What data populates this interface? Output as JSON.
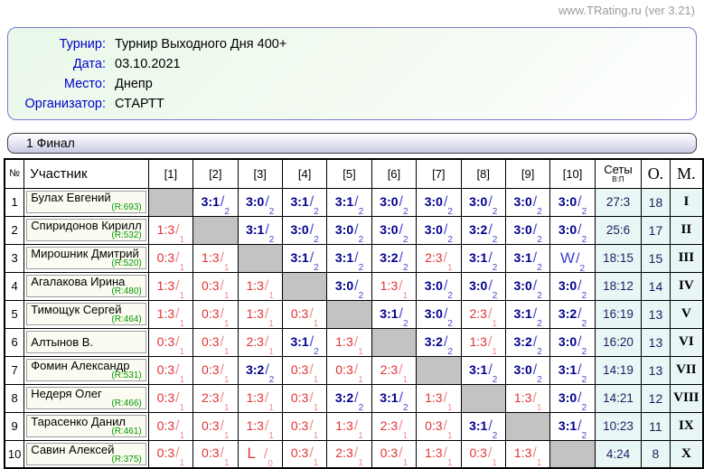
{
  "site": {
    "watermark": "www.TRating.ru (ver 3.21)"
  },
  "info": {
    "fields": [
      {
        "label": "Турнир:",
        "value": "Турнир Выходного Дня 400+"
      },
      {
        "label": "Дата:",
        "value": "03.10.2021"
      },
      {
        "label": "Место:",
        "value": "Днепр"
      },
      {
        "label": "Организатор:",
        "value": "СТАРТТ"
      }
    ]
  },
  "section": {
    "title": "1 Финал"
  },
  "colors": {
    "label_blue": "#0000cc",
    "win_navy": "#00008b",
    "win_slash_blue": "#4848d2",
    "loss_red": "#e23333",
    "loss_slash_pink": "#f08e8e",
    "rating_green": "#009900",
    "diagonal_gray": "#c3c3c3",
    "summary_bg": "#e9f6f6",
    "box_border_blue": "#7b7bd0",
    "watermark_gray": "#9a9a9a"
  },
  "table": {
    "headers": {
      "num": "№",
      "participant": "Участник",
      "rounds": [
        "[1]",
        "[2]",
        "[3]",
        "[4]",
        "[5]",
        "[6]",
        "[7]",
        "[8]",
        "[9]",
        "[10]"
      ],
      "sets": "Сеты",
      "sets_sub": "В:П",
      "points": "О.",
      "place": "М."
    },
    "rows": [
      {
        "num": "1",
        "name": "Булах Евгений",
        "rating": "(R:693)",
        "cells": [
          "x",
          "w|3:1|2",
          "w|3:0|2",
          "w|3:1|2",
          "w|3:1|2",
          "w|3:0|2",
          "w|3:0|2",
          "w|3:0|2",
          "w|3:0|2",
          "w|3:0|2"
        ],
        "sets": "27:3",
        "points": "18",
        "place": "I"
      },
      {
        "num": "2",
        "name": "Спиридонов Кирилл",
        "rating": "(R:532)",
        "cells": [
          "l|1:3|1",
          "x",
          "w|3:1|2",
          "w|3:0|2",
          "w|3:0|2",
          "w|3:0|2",
          "w|3:0|2",
          "w|3:2|2",
          "w|3:0|2",
          "w|3:0|2"
        ],
        "sets": "25:6",
        "points": "17",
        "place": "II"
      },
      {
        "num": "3",
        "name": "Мирошник Дмитрий",
        "rating": "(R:520)",
        "cells": [
          "l|0:3|1",
          "l|1:3|1",
          "x",
          "w|3:1|2",
          "w|3:1|2",
          "w|3:2|2",
          "l|2:3|1",
          "w|3:1|2",
          "w|3:1|2",
          "ww|W|2"
        ],
        "sets": "18:15",
        "points": "15",
        "place": "III"
      },
      {
        "num": "4",
        "name": "Агалакова Ирина",
        "rating": "(R:480)",
        "cells": [
          "l|1:3|1",
          "l|0:3|1",
          "l|1:3|1",
          "x",
          "w|3:0|2",
          "l|1:3|1",
          "w|3:0|2",
          "w|3:0|2",
          "w|3:0|2",
          "w|3:0|2"
        ],
        "sets": "18:12",
        "points": "14",
        "place": "IV"
      },
      {
        "num": "5",
        "name": "Тимощук Сергей",
        "rating": "(R:464)",
        "cells": [
          "l|1:3|1",
          "l|0:3|1",
          "l|1:3|1",
          "l|0:3|1",
          "x",
          "w|3:1|2",
          "w|3:0|2",
          "l|2:3|1",
          "w|3:1|2",
          "w|3:2|2"
        ],
        "sets": "16:19",
        "points": "13",
        "place": "V"
      },
      {
        "num": "6",
        "name": "Алтынов В.",
        "rating": "",
        "cells": [
          "l|0:3|1",
          "l|0:3|1",
          "l|2:3|1",
          "w|3:1|2",
          "l|1:3|1",
          "x",
          "w|3:2|2",
          "l|1:3|1",
          "w|3:2|2",
          "w|3:0|2"
        ],
        "sets": "16:20",
        "points": "13",
        "place": "VI"
      },
      {
        "num": "7",
        "name": "Фомин Александр",
        "rating": "(R:531)",
        "cells": [
          "l|0:3|1",
          "l|0:3|1",
          "w|3:2|2",
          "l|0:3|1",
          "l|0:3|1",
          "l|2:3|1",
          "x",
          "w|3:1|2",
          "w|3:0|2",
          "w|3:1|2"
        ],
        "sets": "14:19",
        "points": "13",
        "place": "VII"
      },
      {
        "num": "8",
        "name": "Недеря Олег",
        "rating": "(R:466)",
        "cells": [
          "l|0:3|1",
          "l|2:3|1",
          "l|1:3|1",
          "l|0:3|1",
          "w|3:2|2",
          "w|3:1|2",
          "l|1:3|1",
          "x",
          "l|1:3|1",
          "w|3:0|2"
        ],
        "sets": "14:21",
        "points": "12",
        "place": "VIII"
      },
      {
        "num": "9",
        "name": "Тарасенко Данил",
        "rating": "(R:461)",
        "cells": [
          "l|0:3|1",
          "l|0:3|1",
          "l|1:3|1",
          "l|0:3|1",
          "l|1:3|1",
          "l|2:3|1",
          "l|0:3|1",
          "w|3:1|2",
          "x",
          "w|3:1|2"
        ],
        "sets": "10:23",
        "points": "11",
        "place": "IX"
      },
      {
        "num": "10",
        "name": "Савин Алексей",
        "rating": "(R:375)",
        "cells": [
          "l|0:3|1",
          "l|0:3|1",
          "wl|L|0",
          "l|0:3|1",
          "l|2:3|1",
          "l|0:3|1",
          "l|1:3|1",
          "l|0:3|1",
          "l|1:3|1",
          "x"
        ],
        "sets": "4:24",
        "points": "8",
        "place": "X"
      }
    ]
  }
}
